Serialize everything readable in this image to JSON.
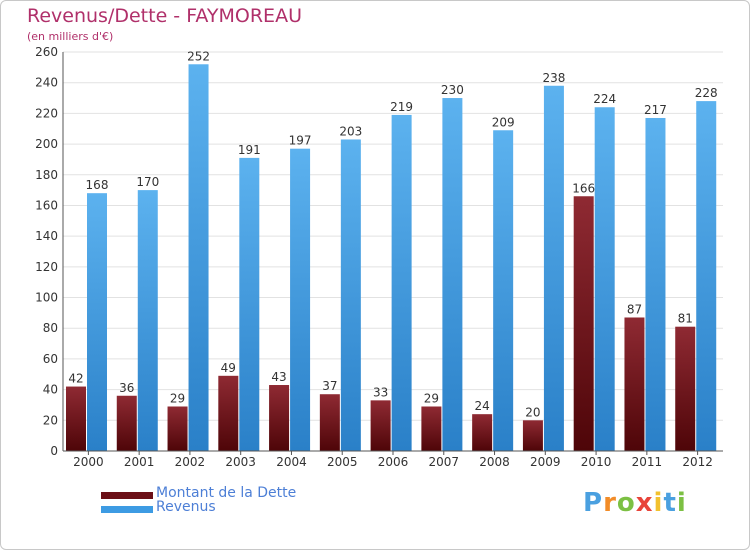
{
  "title": "Revenus/Dette - FAYMOREAU",
  "subtitle": "(en milliers d'€)",
  "colors": {
    "dette": "#7a1a22",
    "revenus": "#3d9be3",
    "title": "#b0306a",
    "legend_text": "#4d7fd6",
    "grid": "#e2e2e2"
  },
  "legend": [
    {
      "label": "Montant de la Dette",
      "color": "#6b0f16"
    },
    {
      "label": "Revenus",
      "color": "#3d9be3"
    }
  ],
  "logo": {
    "text": "Proxiti"
  },
  "chart_data": {
    "type": "bar",
    "categories": [
      "2000",
      "2001",
      "2002",
      "2003",
      "2004",
      "2005",
      "2006",
      "2007",
      "2008",
      "2009",
      "2010",
      "2011",
      "2012"
    ],
    "series": [
      {
        "name": "Montant de la Dette",
        "values": [
          42,
          36,
          29,
          49,
          43,
          37,
          33,
          29,
          24,
          20,
          166,
          87,
          81
        ]
      },
      {
        "name": "Revenus",
        "values": [
          168,
          170,
          252,
          191,
          197,
          203,
          219,
          230,
          209,
          238,
          224,
          217,
          228
        ]
      }
    ],
    "ylim": [
      0,
      260
    ],
    "yticks": [
      0,
      20,
      40,
      60,
      80,
      100,
      120,
      140,
      160,
      180,
      200,
      220,
      240,
      260
    ],
    "grid": true,
    "legend_position": "bottom-left"
  }
}
